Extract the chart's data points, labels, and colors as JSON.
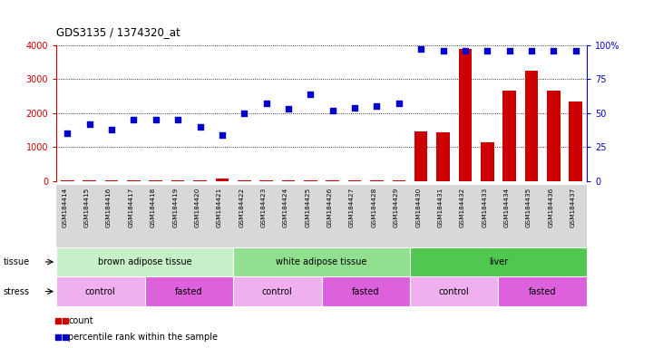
{
  "title": "GDS3135 / 1374320_at",
  "samples": [
    "GSM184414",
    "GSM184415",
    "GSM184416",
    "GSM184417",
    "GSM184418",
    "GSM184419",
    "GSM184420",
    "GSM184421",
    "GSM184422",
    "GSM184423",
    "GSM184424",
    "GSM184425",
    "GSM184426",
    "GSM184427",
    "GSM184428",
    "GSM184429",
    "GSM184430",
    "GSM184431",
    "GSM184432",
    "GSM184433",
    "GSM184434",
    "GSM184435",
    "GSM184436",
    "GSM184437"
  ],
  "count_values": [
    30,
    30,
    30,
    30,
    30,
    30,
    30,
    80,
    30,
    30,
    30,
    30,
    30,
    30,
    30,
    30,
    1450,
    1430,
    3900,
    1130,
    2650,
    3250,
    2650,
    2330
  ],
  "percentile_values": [
    35,
    42,
    38,
    45,
    45,
    45,
    40,
    34,
    50,
    57,
    53,
    64,
    52,
    54,
    55,
    57,
    97,
    96,
    96,
    96,
    96,
    96,
    96,
    96
  ],
  "tissue_groups": [
    {
      "label": "brown adipose tissue",
      "start": 0,
      "end": 7,
      "color": "#c8f0c8"
    },
    {
      "label": "white adipose tissue",
      "start": 8,
      "end": 15,
      "color": "#90e090"
    },
    {
      "label": "liver",
      "start": 16,
      "end": 23,
      "color": "#50c850"
    }
  ],
  "stress_groups": [
    {
      "label": "control",
      "start": 0,
      "end": 3,
      "color": "#f0b0f0"
    },
    {
      "label": "fasted",
      "start": 4,
      "end": 7,
      "color": "#dd60dd"
    },
    {
      "label": "control",
      "start": 8,
      "end": 11,
      "color": "#f0b0f0"
    },
    {
      "label": "fasted",
      "start": 12,
      "end": 15,
      "color": "#dd60dd"
    },
    {
      "label": "control",
      "start": 16,
      "end": 19,
      "color": "#f0b0f0"
    },
    {
      "label": "fasted",
      "start": 20,
      "end": 23,
      "color": "#dd60dd"
    }
  ],
  "count_color": "#cc0000",
  "percentile_color": "#0000cc",
  "ylim_left": [
    0,
    4000
  ],
  "ylim_right": [
    0,
    100
  ],
  "yticks_left": [
    0,
    1000,
    2000,
    3000,
    4000
  ],
  "yticks_right": [
    0,
    25,
    50,
    75,
    100
  ],
  "ytick_labels_right": [
    "0",
    "25",
    "50",
    "75",
    "100%"
  ],
  "bg_color": "#ffffff",
  "plot_bg_color": "#ffffff",
  "xticklabel_bg": "#d8d8d8"
}
